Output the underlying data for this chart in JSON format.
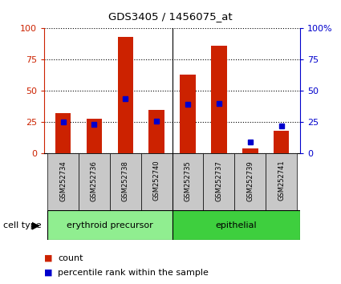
{
  "title": "GDS3405 / 1456075_at",
  "samples": [
    "GSM252734",
    "GSM252736",
    "GSM252738",
    "GSM252740",
    "GSM252735",
    "GSM252737",
    "GSM252739",
    "GSM252741"
  ],
  "red_values": [
    32,
    28,
    93,
    35,
    63,
    86,
    4,
    18
  ],
  "blue_values": [
    25,
    23,
    44,
    26,
    39,
    40,
    9,
    22
  ],
  "groups": [
    {
      "label": "erythroid precursor",
      "color": "#90ee90"
    },
    {
      "label": "epithelial",
      "color": "#3ecf3e"
    }
  ],
  "ylim": [
    0,
    100
  ],
  "yticks": [
    0,
    25,
    50,
    75,
    100
  ],
  "bar_color": "#cc2200",
  "marker_color": "#0000cc",
  "bg_labels": "#c8c8c8",
  "left_axis_color": "#cc2200",
  "right_axis_color": "#0000cc",
  "bar_width": 0.5,
  "legend_red_label": "count",
  "legend_blue_label": "percentile rank within the sample",
  "cell_type_label": "cell type"
}
